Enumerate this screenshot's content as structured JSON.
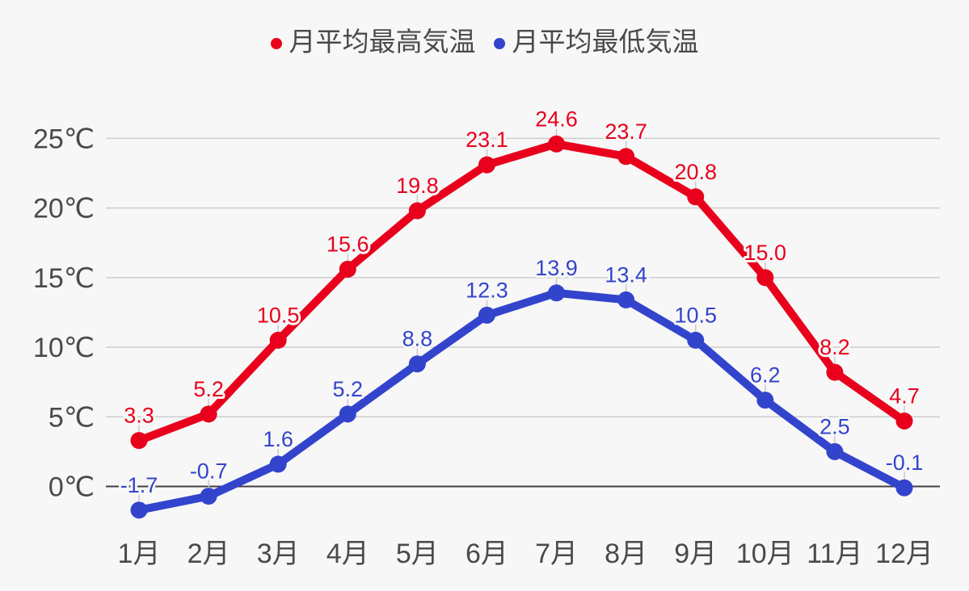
{
  "chart_data": {
    "type": "line",
    "title": "",
    "categories": [
      "1月",
      "2月",
      "3月",
      "4月",
      "5月",
      "6月",
      "7月",
      "8月",
      "9月",
      "10月",
      "11月",
      "12月"
    ],
    "series": [
      {
        "name": "月平均最高気温",
        "color": "#e8001c",
        "values": [
          3.3,
          5.2,
          10.5,
          15.6,
          19.8,
          23.1,
          24.6,
          23.7,
          20.8,
          15.0,
          8.2,
          4.7
        ]
      },
      {
        "name": "月平均最低気温",
        "color": "#3344cc",
        "values": [
          -1.7,
          -0.7,
          1.6,
          5.2,
          8.8,
          12.3,
          13.9,
          13.4,
          10.5,
          6.2,
          2.5,
          -0.1
        ]
      }
    ],
    "y_ticks": [
      {
        "value": 0,
        "label": "0℃"
      },
      {
        "value": 5,
        "label": "5℃"
      },
      {
        "value": 10,
        "label": "10℃"
      },
      {
        "value": 15,
        "label": "15℃"
      },
      {
        "value": 20,
        "label": "20℃"
      },
      {
        "value": 25,
        "label": "25℃"
      }
    ],
    "ylim": [
      -3.5,
      27.5
    ],
    "xlabel": "",
    "ylabel": "",
    "grid": true,
    "legend_position": "top",
    "data_labels": true
  },
  "colors": {
    "background": "#f7f7f7",
    "gridline": "#cccccc",
    "zero_line": "#3f3f3f",
    "axis_text": "#4a4a4a",
    "label_stem": "#c9c9c9"
  }
}
